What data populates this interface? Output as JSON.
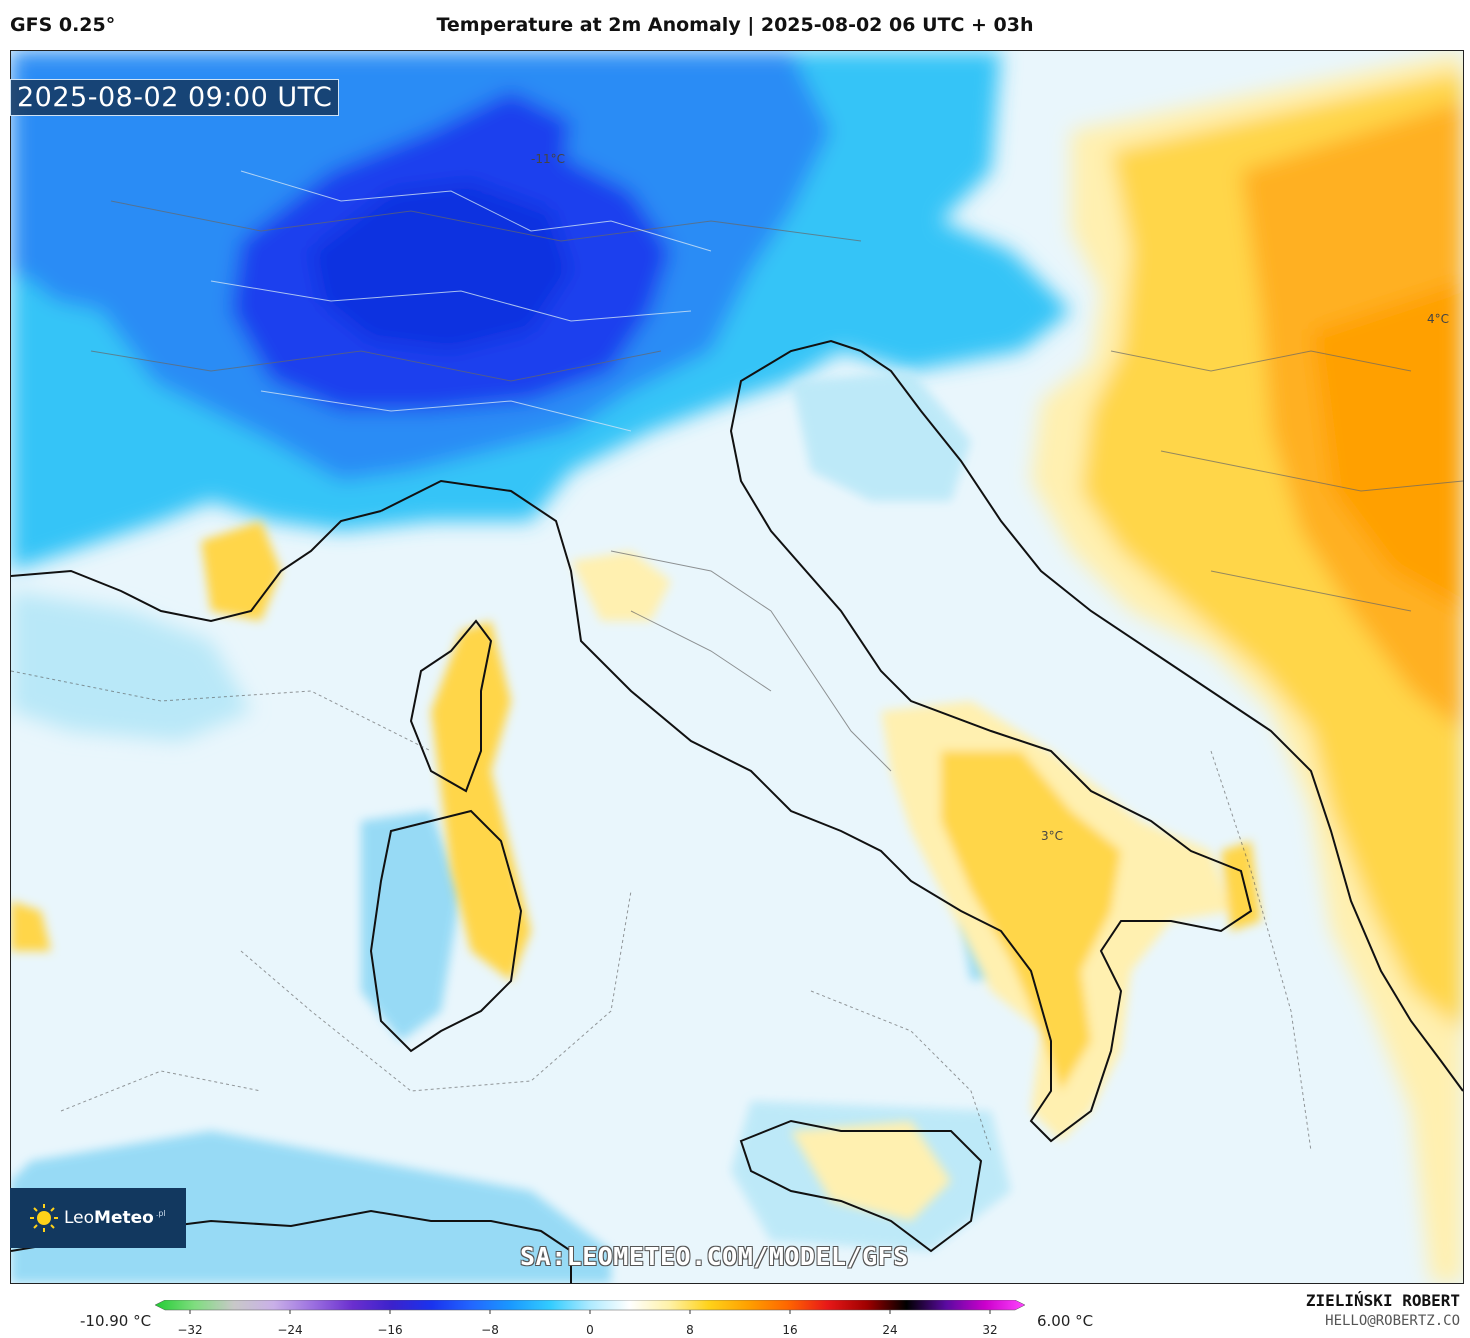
{
  "header": {
    "model": "GFS 0.25°",
    "title": "Temperature at 2m Anomaly | 2025-08-02 06 UTC + 03h"
  },
  "map": {
    "valid_time": "2025-08-02 09:00 UTC",
    "annotations": [
      {
        "id": "min",
        "text": "-11°C"
      },
      {
        "id": "east",
        "text": "4°C"
      },
      {
        "id": "south",
        "text": "3°C"
      }
    ],
    "watermark": "SA:LEOMETEO.COM/MODEL/GFS"
  },
  "logo": {
    "brand_light": "Leo",
    "brand_bold": "Meteo",
    "suffix": ".pl"
  },
  "colorbar": {
    "min_label": "-10.90 °C",
    "max_label": "6.00 °C",
    "ticks": [
      "−32",
      "−24",
      "−16",
      "−8",
      "0",
      "8",
      "16",
      "24",
      "32"
    ],
    "tick_values": [
      -32,
      -24,
      -16,
      -8,
      0,
      8,
      16,
      24,
      32
    ],
    "range": [
      -34,
      34
    ],
    "stops": [
      "#22cc33",
      "#7fdd7f",
      "#c8c8c8",
      "#c9b0e8",
      "#9b6fe0",
      "#6a2fcf",
      "#3b22cc",
      "#1a33ee",
      "#2266ff",
      "#1a99ff",
      "#33ccff",
      "#aeeaff",
      "#ffffff",
      "#fff2a8",
      "#ffd21a",
      "#ffa000",
      "#ff6600",
      "#e81818",
      "#a00000",
      "#000000",
      "#5a0aa0",
      "#cc00cc",
      "#ff44ff"
    ]
  },
  "footer": {
    "author": "ZIELIŃSKI ROBERT",
    "email": "HELLO@ROBERTZ.CO"
  },
  "colors": {
    "anomaly_cold_strong": "#1a40ee",
    "anomaly_cold": "#2a8cf5",
    "anomaly_cool": "#34c4f7",
    "anomaly_slight_cool": "#b9e8f8",
    "anomaly_neutral": "#e9f6fc",
    "anomaly_warm_slight": "#fff0b0",
    "anomaly_warm": "#ffd64a",
    "anomaly_warm_strong": "#ffb020",
    "logo_bg": "#12385f"
  }
}
